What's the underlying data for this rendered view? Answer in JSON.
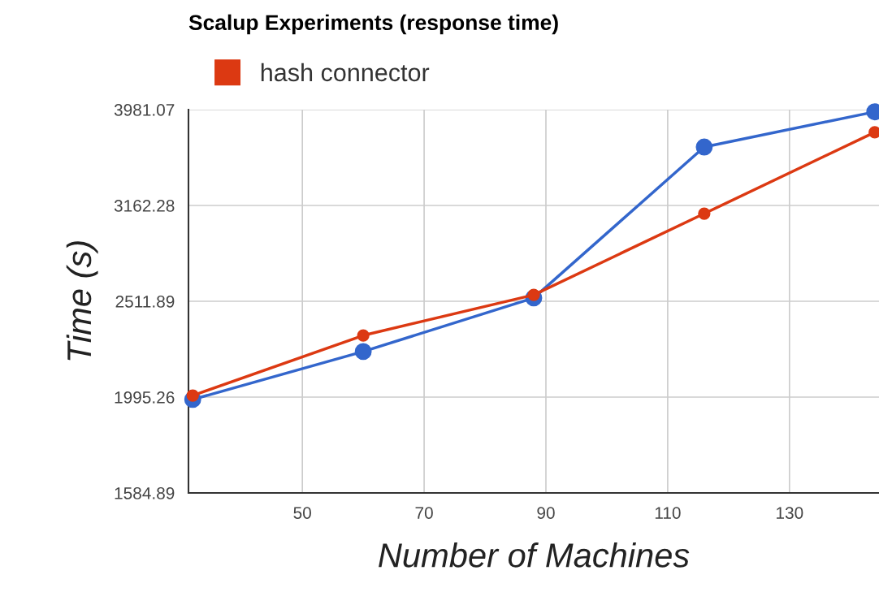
{
  "chart_data": {
    "type": "line",
    "title": "Scalup Experiments (response time)",
    "xlabel": "Number of Machines",
    "ylabel": "Time (s)",
    "x": [
      32,
      60,
      88,
      116,
      144
    ],
    "series": [
      {
        "color": "#3366cc",
        "values": [
          1984,
          2226,
          2532,
          3639,
          3960
        ]
      },
      {
        "name": "hash connector",
        "color": "#dc3912",
        "values": [
          2003,
          2314,
          2551,
          3101,
          3770
        ]
      }
    ],
    "log": "y",
    "xlim": [
      31.3,
      144.7
    ],
    "xticks": [
      50,
      70,
      90,
      110,
      130
    ],
    "ylim": [
      1584.89,
      3981.07
    ],
    "yticks": [
      1584.89,
      1995.26,
      2511.89,
      3162.28,
      3981.07
    ],
    "grid": true,
    "legend": "top left",
    "marker": "circle",
    "line_style": "solid"
  }
}
